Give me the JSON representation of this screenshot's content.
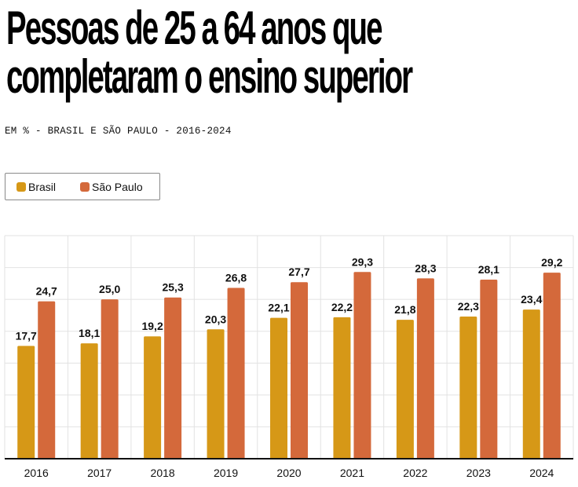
{
  "header": {
    "title_lines": [
      "Pessoas de 25 a 64 anos que",
      "completaram o ensino superior"
    ],
    "subtitle": "EM % - BRASIL E SÃO PAULO - 2016-2024"
  },
  "legend": {
    "items": [
      {
        "label": "Brasil",
        "color": "#d69817"
      },
      {
        "label": "São Paulo",
        "color": "#d4693b"
      }
    ]
  },
  "chart_data": {
    "type": "bar",
    "title": "Pessoas de 25 a 64 anos que completaram o ensino superior",
    "subtitle": "EM % - BRASIL E SÃO PAULO - 2016-2024",
    "xlabel": "",
    "ylabel": "",
    "ylim": [
      0,
      35
    ],
    "y_grid_step": 5,
    "grid": true,
    "legend_position": "top-left",
    "categories": [
      "2016",
      "2017",
      "2018",
      "2019",
      "2020",
      "2021",
      "2022",
      "2023",
      "2024"
    ],
    "series": [
      {
        "name": "Brasil",
        "color": "#d69817",
        "values": [
          17.7,
          18.1,
          19.2,
          20.3,
          22.1,
          22.2,
          21.8,
          22.3,
          23.4
        ],
        "labels": [
          "17,7",
          "18,1",
          "19,2",
          "20,3",
          "22,1",
          "22,2",
          "21,8",
          "22,3",
          "23,4"
        ]
      },
      {
        "name": "São Paulo",
        "color": "#d4693b",
        "values": [
          24.7,
          25.0,
          25.3,
          26.8,
          27.7,
          29.3,
          28.3,
          28.1,
          29.2
        ],
        "labels": [
          "24,7",
          "25,0",
          "25,3",
          "26,8",
          "27,7",
          "29,3",
          "28,3",
          "28,1",
          "29,2"
        ]
      }
    ]
  }
}
